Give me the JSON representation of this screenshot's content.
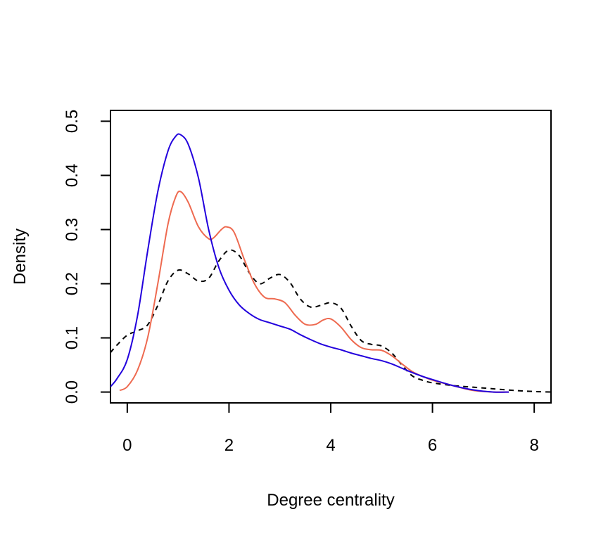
{
  "chart_data": {
    "type": "line",
    "title": "",
    "xlabel": "Degree centrality",
    "ylabel": "Density",
    "xlim": [
      -0.33,
      8.33
    ],
    "ylim": [
      -0.02,
      0.52
    ],
    "xticks": [
      0,
      2,
      4,
      6,
      8
    ],
    "yticks": [
      0.0,
      0.1,
      0.2,
      0.3,
      0.4,
      0.5
    ],
    "xtick_labels": [
      "0",
      "2",
      "4",
      "6",
      "8"
    ],
    "ytick_labels": [
      "0.0",
      "0.1",
      "0.2",
      "0.3",
      "0.4",
      "0.5"
    ],
    "grid": false,
    "legend": "none",
    "series": [
      {
        "color": "#000000",
        "dash": "dashed",
        "points": [
          [
            -0.33,
            0.073
          ],
          [
            -0.2,
            0.087
          ],
          [
            0,
            0.105
          ],
          [
            0.2,
            0.113
          ],
          [
            0.4,
            0.124
          ],
          [
            0.6,
            0.16
          ],
          [
            0.8,
            0.205
          ],
          [
            1.0,
            0.225
          ],
          [
            1.2,
            0.218
          ],
          [
            1.4,
            0.205
          ],
          [
            1.6,
            0.21
          ],
          [
            1.8,
            0.242
          ],
          [
            2.0,
            0.262
          ],
          [
            2.2,
            0.252
          ],
          [
            2.4,
            0.22
          ],
          [
            2.6,
            0.2
          ],
          [
            2.8,
            0.21
          ],
          [
            3.0,
            0.217
          ],
          [
            3.2,
            0.202
          ],
          [
            3.4,
            0.172
          ],
          [
            3.6,
            0.157
          ],
          [
            3.8,
            0.16
          ],
          [
            4.0,
            0.165
          ],
          [
            4.2,
            0.155
          ],
          [
            4.4,
            0.122
          ],
          [
            4.6,
            0.095
          ],
          [
            4.8,
            0.088
          ],
          [
            5.0,
            0.085
          ],
          [
            5.2,
            0.072
          ],
          [
            5.4,
            0.05
          ],
          [
            5.6,
            0.03
          ],
          [
            5.8,
            0.022
          ],
          [
            6.0,
            0.017
          ],
          [
            6.4,
            0.012
          ],
          [
            6.8,
            0.009
          ],
          [
            7.2,
            0.006
          ],
          [
            7.6,
            0.003
          ],
          [
            8.0,
            0.001
          ],
          [
            8.33,
            0.0
          ]
        ]
      },
      {
        "color": "#ee6a50",
        "dash": "solid",
        "points": [
          [
            -0.15,
            0.003
          ],
          [
            0,
            0.01
          ],
          [
            0.2,
            0.04
          ],
          [
            0.4,
            0.1
          ],
          [
            0.6,
            0.2
          ],
          [
            0.8,
            0.31
          ],
          [
            0.95,
            0.36
          ],
          [
            1.05,
            0.37
          ],
          [
            1.2,
            0.35
          ],
          [
            1.4,
            0.305
          ],
          [
            1.6,
            0.283
          ],
          [
            1.7,
            0.285
          ],
          [
            1.85,
            0.3
          ],
          [
            1.95,
            0.305
          ],
          [
            2.1,
            0.295
          ],
          [
            2.3,
            0.245
          ],
          [
            2.5,
            0.2
          ],
          [
            2.7,
            0.175
          ],
          [
            2.9,
            0.172
          ],
          [
            3.1,
            0.165
          ],
          [
            3.3,
            0.142
          ],
          [
            3.5,
            0.125
          ],
          [
            3.7,
            0.125
          ],
          [
            3.85,
            0.133
          ],
          [
            4.0,
            0.135
          ],
          [
            4.2,
            0.12
          ],
          [
            4.4,
            0.097
          ],
          [
            4.6,
            0.082
          ],
          [
            4.8,
            0.078
          ],
          [
            5.0,
            0.077
          ],
          [
            5.2,
            0.067
          ],
          [
            5.4,
            0.052
          ],
          [
            5.6,
            0.038
          ],
          [
            5.8,
            0.029
          ],
          [
            6.0,
            0.022
          ],
          [
            6.4,
            0.012
          ],
          [
            6.8,
            0.003
          ],
          [
            7.2,
            0.0
          ],
          [
            7.5,
            0.0
          ]
        ]
      },
      {
        "color": "#2200dd",
        "dash": "solid",
        "points": [
          [
            -0.33,
            0.01
          ],
          [
            -0.2,
            0.025
          ],
          [
            0,
            0.06
          ],
          [
            0.2,
            0.14
          ],
          [
            0.4,
            0.26
          ],
          [
            0.6,
            0.37
          ],
          [
            0.8,
            0.445
          ],
          [
            0.95,
            0.472
          ],
          [
            1.05,
            0.475
          ],
          [
            1.2,
            0.457
          ],
          [
            1.4,
            0.395
          ],
          [
            1.6,
            0.3
          ],
          [
            1.8,
            0.23
          ],
          [
            2.0,
            0.188
          ],
          [
            2.2,
            0.161
          ],
          [
            2.4,
            0.145
          ],
          [
            2.6,
            0.134
          ],
          [
            2.8,
            0.128
          ],
          [
            3.0,
            0.122
          ],
          [
            3.2,
            0.116
          ],
          [
            3.4,
            0.106
          ],
          [
            3.6,
            0.097
          ],
          [
            3.8,
            0.089
          ],
          [
            4.0,
            0.083
          ],
          [
            4.2,
            0.078
          ],
          [
            4.4,
            0.072
          ],
          [
            4.6,
            0.067
          ],
          [
            4.8,
            0.062
          ],
          [
            5.0,
            0.058
          ],
          [
            5.2,
            0.052
          ],
          [
            5.4,
            0.044
          ],
          [
            5.6,
            0.036
          ],
          [
            5.8,
            0.029
          ],
          [
            6.0,
            0.023
          ],
          [
            6.4,
            0.012
          ],
          [
            6.8,
            0.004
          ],
          [
            7.2,
            0.0
          ],
          [
            7.5,
            0.0
          ]
        ]
      }
    ]
  }
}
